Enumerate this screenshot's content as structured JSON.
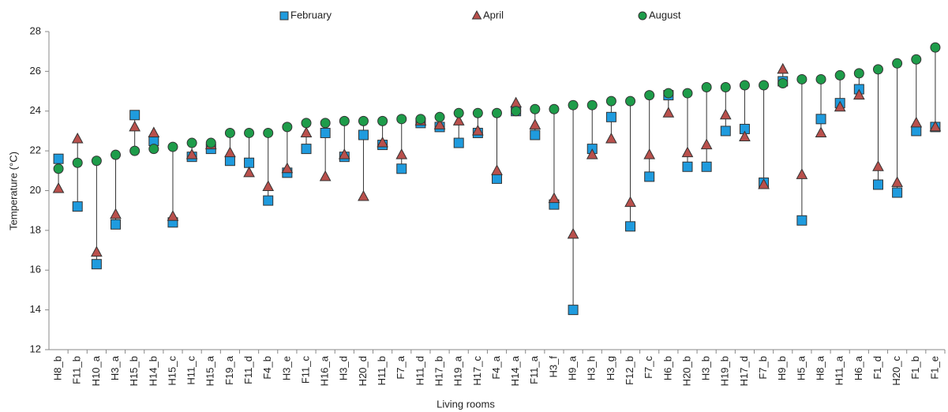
{
  "chart_data": {
    "type": "scatter",
    "x_label": "Living rooms",
    "y_label": "Temperature (°C)",
    "categories": [
      "H8_b",
      "F11_b",
      "H10_a",
      "H3_a",
      "H15_b",
      "H14_b",
      "H15_c",
      "H11_c",
      "H15_a",
      "F19_a",
      "F11_d",
      "F4_b",
      "H3_e",
      "F11_c",
      "H16_a",
      "H3_d",
      "H20_d",
      "H11_b",
      "F7_a",
      "H11_d",
      "H17_b",
      "H19_a",
      "H17_c",
      "F4_a",
      "H14_a",
      "F11_a",
      "H3_f",
      "H9_a",
      "H3_h",
      "H3_g",
      "F12_b",
      "F7_c",
      "H6_b",
      "H20_b",
      "H3_b",
      "H19_b",
      "H17_d",
      "F7_b",
      "H9_b",
      "H5_a",
      "H8_a",
      "H11_a",
      "H6_a",
      "F1_d",
      "H20_c",
      "F1_b",
      "F1_e"
    ],
    "series": [
      {
        "name": "February",
        "color": "#1f9bde",
        "marker": "square",
        "values": [
          21.6,
          19.2,
          16.3,
          18.3,
          23.8,
          22.5,
          18.4,
          21.7,
          22.1,
          21.5,
          21.4,
          19.5,
          20.9,
          22.1,
          22.9,
          21.7,
          22.8,
          22.3,
          21.1,
          23.4,
          23.2,
          22.4,
          22.9,
          20.6,
          24.0,
          22.8,
          19.3,
          14.0,
          22.1,
          23.7,
          18.2,
          20.7,
          24.8,
          21.2,
          21.2,
          23.0,
          23.1,
          20.4,
          25.5,
          18.5,
          23.6,
          24.4,
          25.1,
          20.3,
          19.9,
          23.0,
          23.2
        ]
      },
      {
        "name": "April",
        "color": "#b9504c",
        "marker": "triangle",
        "values": [
          20.1,
          22.6,
          16.9,
          18.8,
          23.2,
          22.9,
          18.7,
          21.8,
          22.3,
          21.9,
          20.9,
          20.2,
          21.1,
          22.9,
          20.7,
          21.8,
          19.7,
          22.4,
          21.8,
          23.5,
          23.3,
          23.5,
          23.0,
          21.0,
          24.4,
          23.3,
          19.6,
          17.8,
          21.8,
          22.6,
          19.4,
          21.8,
          23.9,
          21.9,
          22.3,
          23.8,
          22.7,
          20.3,
          26.1,
          20.8,
          22.9,
          24.2,
          24.8,
          21.2,
          20.4,
          23.4,
          23.2
        ]
      },
      {
        "name": "August",
        "color": "#1e9c4a",
        "marker": "circle",
        "values": [
          21.1,
          21.4,
          21.5,
          21.8,
          22.0,
          22.1,
          22.2,
          22.4,
          22.4,
          22.9,
          22.9,
          22.9,
          23.2,
          23.4,
          23.4,
          23.5,
          23.5,
          23.5,
          23.6,
          23.6,
          23.7,
          23.9,
          23.9,
          23.9,
          24.0,
          24.1,
          24.1,
          24.3,
          24.3,
          24.5,
          24.5,
          24.8,
          24.9,
          24.9,
          25.2,
          25.2,
          25.3,
          25.3,
          25.4,
          25.6,
          25.6,
          25.8,
          25.9,
          26.1,
          26.4,
          26.6,
          27.2
        ]
      }
    ],
    "ylim": [
      12,
      28
    ],
    "yticks": [
      12,
      14,
      16,
      18,
      20,
      22,
      24,
      26,
      28
    ],
    "grid": false,
    "legend": "top"
  }
}
